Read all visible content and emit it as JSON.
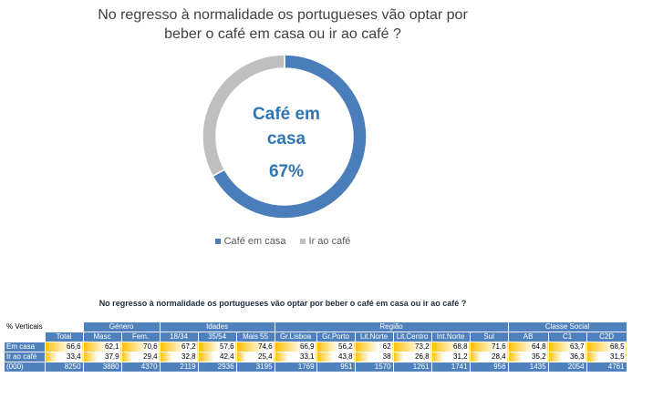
{
  "chart_data": [
    {
      "type": "pie",
      "title_lines": [
        "No regresso à normalidade os portugueses vão optar por",
        "beber o café em casa ou ir ao café ?"
      ],
      "labels": [
        "Café em casa",
        "Ir ao café"
      ],
      "values": [
        67,
        33
      ],
      "colors": [
        "#4a7ebb",
        "#bfbfbf"
      ],
      "center_label_lines": [
        "Café em",
        "casa"
      ],
      "center_value": "67%",
      "legend_position": "bottom"
    },
    {
      "type": "table",
      "title": "No regresso à normalidade os portugueses vão optar por beber o café em casa ou ir ao café ?",
      "corner_label": "% Verticais",
      "groups": [
        {
          "label": "",
          "span": 1
        },
        {
          "label": "Género",
          "span": 2
        },
        {
          "label": "Idades",
          "span": 3
        },
        {
          "label": "Região",
          "span": 6
        },
        {
          "label": "Classe Social",
          "span": 3
        }
      ],
      "columns": [
        "Total",
        "Masc",
        "Fem.",
        "18/34",
        "35/54",
        "Mais 55",
        "Gr.Lisboa",
        "Gr.Porto",
        "Lit.Norte",
        "Lit.Centro",
        "Int.Norte",
        "Sul",
        "AB",
        "C1",
        "C2D"
      ],
      "rows": [
        {
          "label": "Em casa",
          "values": [
            "66,6",
            "62,1",
            "70,6",
            "67,2",
            "57,6",
            "74,6",
            "66,9",
            "56,2",
            "62",
            "73,2",
            "68,8",
            "71,6",
            "64,8",
            "63,7",
            "68,5"
          ]
        },
        {
          "label": "Ir ao café",
          "values": [
            "33,4",
            "37,9",
            "29,4",
            "32,8",
            "42,4",
            "25,4",
            "33,1",
            "43,8",
            "38",
            "26,8",
            "31,2",
            "28,4",
            "35,2",
            "36,3",
            "31,5"
          ]
        }
      ],
      "base_row": {
        "label": "(000)",
        "values": [
          "8250",
          "3880",
          "4370",
          "2119",
          "2936",
          "3195",
          "1769",
          "951",
          "1570",
          "1261",
          "1741",
          "956",
          "1435",
          "2054",
          "4761"
        ]
      },
      "bar_color": "#ffc000"
    }
  ]
}
